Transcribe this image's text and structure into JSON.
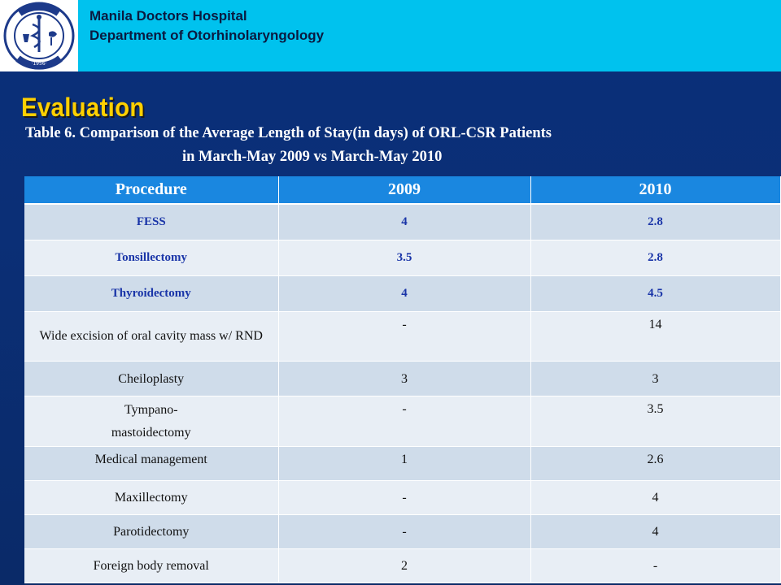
{
  "header": {
    "hospital": "Manila Doctors Hospital",
    "department": "Department of Otorhinolaryngology",
    "logo_text_top": "MANILA DOCTORS HOSPITAL",
    "logo_year": "1956",
    "logo_icon": "hospital-seal-icon"
  },
  "slide": {
    "title": "Evaluation",
    "caption_line1": "Table 6. Comparison of the Average Length of Stay(in days) of ORL-CSR Patients",
    "caption_line2": "in  March-May 2009 vs March-May 2010"
  },
  "table": {
    "headers": [
      "Procedure",
      "2009",
      "2010"
    ],
    "rows": [
      {
        "procedure": "FESS",
        "y2009": "4",
        "y2010": "2.8"
      },
      {
        "procedure": "Tonsillectomy",
        "y2009": "3.5",
        "y2010": "2.8"
      },
      {
        "procedure": "Thyroidectomy",
        "y2009": "4",
        "y2010": "4.5"
      },
      {
        "procedure": "Wide excision of oral cavity mass w/ RND",
        "y2009": "-",
        "y2010": "14"
      },
      {
        "procedure": "Cheiloplasty",
        "y2009": "3",
        "y2010": "3"
      },
      {
        "procedure": "Tympano- mastoidectomy",
        "y2009": "-",
        "y2010": "3.5"
      },
      {
        "procedure": "Medical management",
        "y2009": "1",
        "y2010": "2.6"
      },
      {
        "procedure": "Maxillectomy",
        "y2009": "-",
        "y2010": "4"
      },
      {
        "procedure": "Parotidectomy",
        "y2009": "-",
        "y2010": "4"
      },
      {
        "procedure": "Foreign body removal",
        "y2009": "2",
        "y2010": "-"
      }
    ]
  },
  "colors": {
    "background": "#0a2f7a",
    "header_bar": "#00c2ee",
    "title": "#ffd000",
    "table_header": "#1a87e0",
    "row_light": "#e8eef5",
    "row_dark": "#cfdcea",
    "bold_text": "#1a35a8"
  }
}
